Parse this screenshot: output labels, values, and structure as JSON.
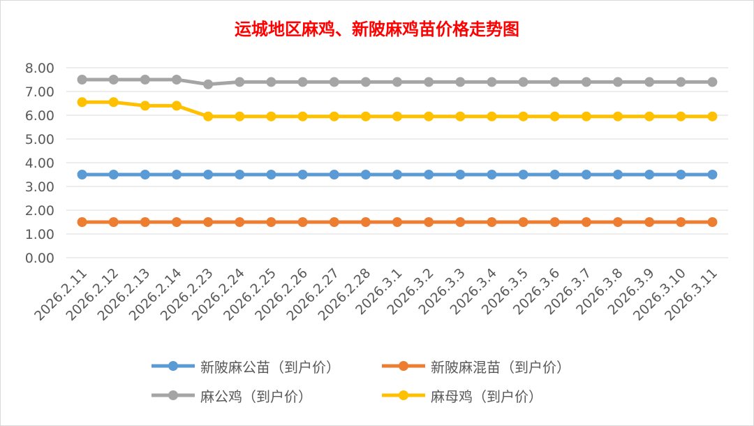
{
  "chart_data": {
    "type": "line",
    "title": "运城地区麻鸡、新陂麻鸡苗价格走势图",
    "xlabel": "",
    "ylabel": "",
    "ylim": [
      0,
      8
    ],
    "yticks": [
      "0.00",
      "1.00",
      "2.00",
      "3.00",
      "4.00",
      "5.00",
      "6.00",
      "7.00",
      "8.00"
    ],
    "grid": true,
    "legend_position": "bottom",
    "categories": [
      "2026.2.11",
      "2026.2.12",
      "2026.2.13",
      "2026.2.14",
      "2026.2.23",
      "2026.2.24",
      "2026.2.25",
      "2026.2.26",
      "2026.2.27",
      "2026.2.28",
      "2026.3.1",
      "2026.3.2",
      "2026.3.3",
      "2026.3.4",
      "2026.3.5",
      "2026.3.6",
      "2026.3.7",
      "2026.3.8",
      "2026.3.9",
      "2026.3.10",
      "2026.3.11"
    ],
    "series": [
      {
        "name": "新陂麻公苗（到户价）",
        "color": "#5b9bd5",
        "values": [
          3.5,
          3.5,
          3.5,
          3.5,
          3.5,
          3.5,
          3.5,
          3.5,
          3.5,
          3.5,
          3.5,
          3.5,
          3.5,
          3.5,
          3.5,
          3.5,
          3.5,
          3.5,
          3.5,
          3.5,
          3.5
        ]
      },
      {
        "name": "新陂麻混苗（到户价）",
        "color": "#ed7d31",
        "values": [
          1.5,
          1.5,
          1.5,
          1.5,
          1.5,
          1.5,
          1.5,
          1.5,
          1.5,
          1.5,
          1.5,
          1.5,
          1.5,
          1.5,
          1.5,
          1.5,
          1.5,
          1.5,
          1.5,
          1.5,
          1.5
        ]
      },
      {
        "name": "麻公鸡（到户价）",
        "color": "#a5a5a5",
        "values": [
          7.5,
          7.5,
          7.5,
          7.5,
          7.3,
          7.4,
          7.4,
          7.4,
          7.4,
          7.4,
          7.4,
          7.4,
          7.4,
          7.4,
          7.4,
          7.4,
          7.4,
          7.4,
          7.4,
          7.4,
          7.4
        ]
      },
      {
        "name": "麻母鸡（到户价）",
        "color": "#ffc000",
        "values": [
          6.55,
          6.55,
          6.4,
          6.4,
          5.95,
          5.95,
          5.95,
          5.95,
          5.95,
          5.95,
          5.95,
          5.95,
          5.95,
          5.95,
          5.95,
          5.95,
          5.95,
          5.95,
          5.95,
          5.95,
          5.95
        ]
      }
    ]
  }
}
